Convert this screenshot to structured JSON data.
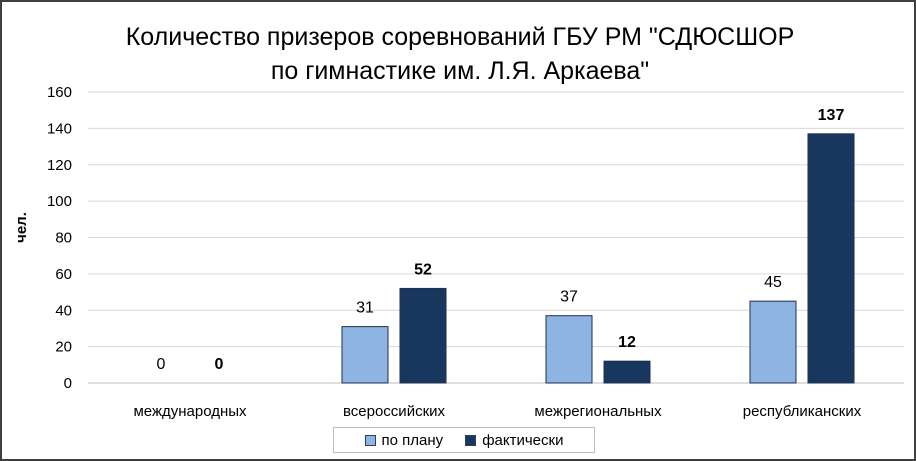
{
  "chart_data": {
    "type": "bar",
    "title": "Количество призеров соревнований ГБУ РМ \"СДЮСШОР по гимнастике им. Л.Я. Аркаева\"",
    "title_lines": [
      "Количество призеров соревнований ГБУ РМ \"СДЮСШОР",
      "по гимнастике им. Л.Я. Аркаева\""
    ],
    "xlabel": "",
    "ylabel": "чел.",
    "ylim": [
      0,
      160
    ],
    "yticks": [
      "0",
      "20",
      "40",
      "60",
      "80",
      "100",
      "120",
      "140",
      "160"
    ],
    "grid": true,
    "legend_position": "bottom",
    "categories": [
      "международных",
      "всероссийских",
      "межрегиональных",
      "республиканских"
    ],
    "series": [
      {
        "name": "по плану",
        "values": [
          0,
          31,
          37,
          45
        ],
        "color": "#8eb4e3",
        "label_bold": false
      },
      {
        "name": "фактически",
        "values": [
          0,
          52,
          12,
          137
        ],
        "color": "#17375e",
        "label_bold": true
      }
    ]
  }
}
